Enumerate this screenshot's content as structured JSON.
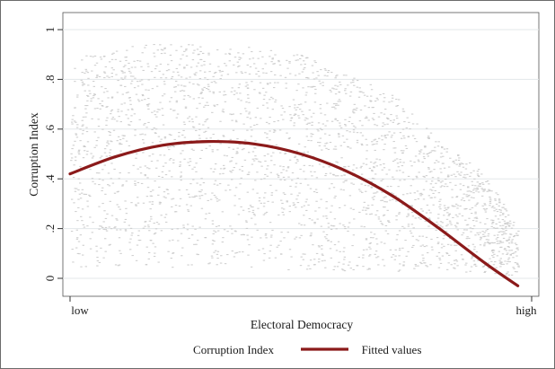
{
  "chart_data": {
    "type": "scatter",
    "title": "",
    "xlabel": "Electoral Democracy",
    "ylabel": "Corruption Index",
    "x_tick_labels": [
      "low",
      "high"
    ],
    "xlim": [
      0,
      1
    ],
    "ylim": [
      0,
      1
    ],
    "y_ticks": [
      {
        "value": 0,
        "label": "0"
      },
      {
        "value": 0.2,
        "label": ".2"
      },
      {
        "value": 0.4,
        "label": ".4"
      },
      {
        "value": 0.6,
        "label": ".6"
      },
      {
        "value": 0.8,
        "label": ".8"
      },
      {
        "value": 1,
        "label": "1"
      }
    ],
    "grid": "horizontal",
    "legend_position": "bottom",
    "series": [
      {
        "name": "Corruption Index",
        "kind": "scatter",
        "color": "#c8c8c8",
        "density_profile": [
          {
            "x": 0.0,
            "y_low": 0.04,
            "y_high": 0.88
          },
          {
            "x": 0.1,
            "y_low": 0.05,
            "y_high": 0.93
          },
          {
            "x": 0.2,
            "y_low": 0.04,
            "y_high": 0.95
          },
          {
            "x": 0.3,
            "y_low": 0.05,
            "y_high": 0.94
          },
          {
            "x": 0.4,
            "y_low": 0.04,
            "y_high": 0.93
          },
          {
            "x": 0.5,
            "y_low": 0.03,
            "y_high": 0.9
          },
          {
            "x": 0.6,
            "y_low": 0.03,
            "y_high": 0.82
          },
          {
            "x": 0.7,
            "y_low": 0.03,
            "y_high": 0.74
          },
          {
            "x": 0.8,
            "y_low": 0.02,
            "y_high": 0.55
          },
          {
            "x": 0.9,
            "y_low": 0.02,
            "y_high": 0.42
          },
          {
            "x": 0.97,
            "y_low": 0.01,
            "y_high": 0.2
          }
        ]
      },
      {
        "name": "Fitted values",
        "kind": "line",
        "color": "#8b1a1a",
        "x": [
          0.0,
          0.1,
          0.2,
          0.3,
          0.4,
          0.5,
          0.6,
          0.7,
          0.8,
          0.9,
          0.97
        ],
        "y": [
          0.42,
          0.49,
          0.535,
          0.55,
          0.54,
          0.5,
          0.43,
          0.33,
          0.2,
          0.06,
          -0.03
        ]
      }
    ]
  }
}
